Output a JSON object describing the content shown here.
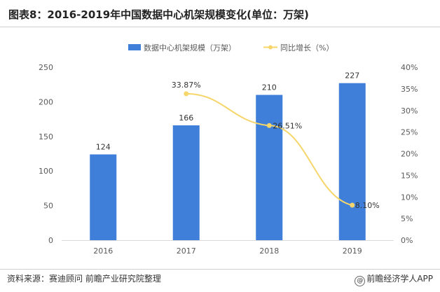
{
  "title": "图表8：2016-2019年中国数据中心机架规模变化(单位：万架)",
  "source": "资料来源：赛迪顾问 前瞻产业研究院整理",
  "brand": "前瞻经济学人APP",
  "brand_icon": "at-icon",
  "colors": {
    "bar": "#3f7fd9",
    "line": "#f6d66b",
    "axis": "#d9d9d9",
    "text": "#595959"
  },
  "chart_data": {
    "type": "bar+line",
    "title": "图表8：2016-2019年中国数据中心机架规模变化(单位：万架)",
    "categories": [
      "2016",
      "2017",
      "2018",
      "2019"
    ],
    "series": [
      {
        "name": "数据中心机架规模（万架）",
        "type": "bar",
        "axis": "left",
        "values": [
          124,
          166,
          210,
          227
        ],
        "labels": [
          "124",
          "166",
          "210",
          "227"
        ]
      },
      {
        "name": "同比增长（%）",
        "type": "line",
        "axis": "right",
        "values": [
          null,
          33.87,
          26.51,
          8.1
        ],
        "labels": [
          "",
          "33.87%",
          "26.51%",
          "8.10%"
        ]
      }
    ],
    "y_left": {
      "min": 0,
      "max": 250,
      "ticks": [
        0,
        50,
        100,
        150,
        200,
        250
      ],
      "tick_labels": [
        "0",
        "50",
        "100",
        "150",
        "200",
        "250"
      ]
    },
    "y_right": {
      "min": 0,
      "max": 40,
      "ticks": [
        0,
        5,
        10,
        15,
        20,
        25,
        30,
        35,
        40
      ],
      "tick_labels": [
        "0%",
        "5%",
        "10%",
        "15%",
        "20%",
        "25%",
        "30%",
        "35%",
        "40%"
      ]
    },
    "legend_position": "top-center",
    "grid": false
  }
}
